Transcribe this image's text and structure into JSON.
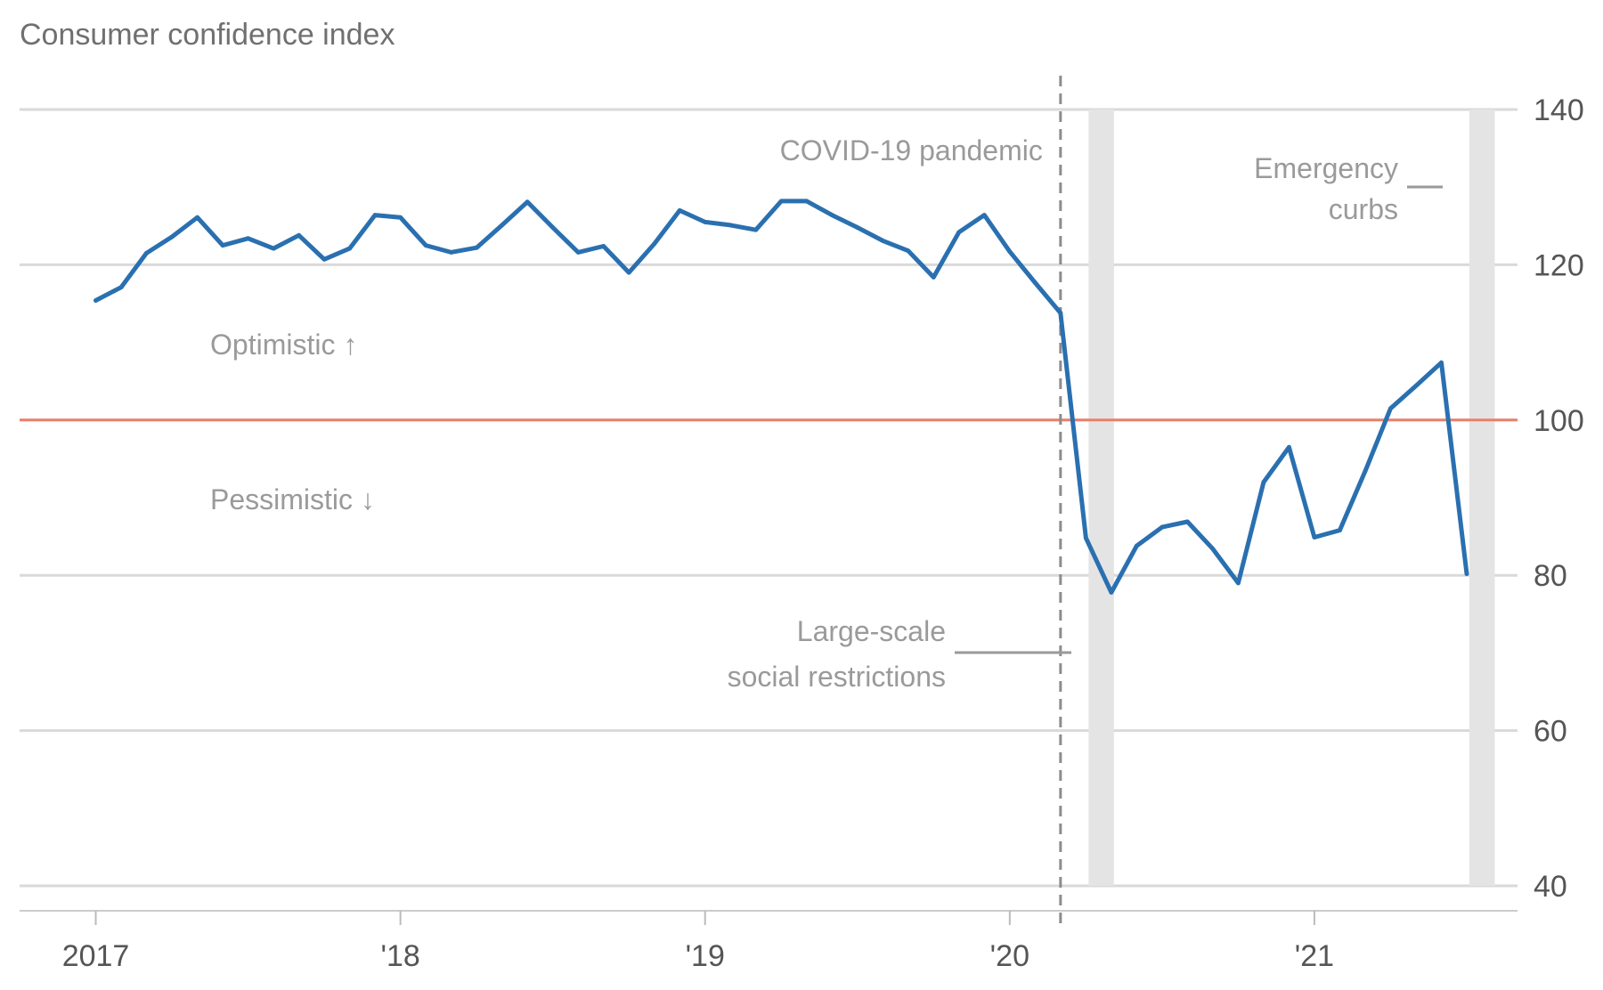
{
  "chart_data": {
    "type": "line",
    "title": "Consumer confidence index",
    "xlabel": "",
    "ylabel": "",
    "ylim": [
      40,
      140
    ],
    "yticks": [
      40,
      60,
      80,
      100,
      120,
      140
    ],
    "ytick_labels": [
      "40",
      "60",
      "80",
      "100",
      "120",
      "140"
    ],
    "xlim": [
      "2016-10",
      "2021-09"
    ],
    "xticks": [
      "2017-01",
      "2018-01",
      "2019-01",
      "2020-01",
      "2021-01"
    ],
    "xtick_labels": [
      "2017",
      "'18",
      "'19",
      "'20",
      "'21"
    ],
    "y_axis_position": "right",
    "grid": true,
    "reference_line": {
      "y": 100,
      "color": "#e8806b"
    },
    "series": [
      {
        "color": "#2a70b0",
        "x": [
          "2017-01",
          "2017-02",
          "2017-03",
          "2017-04",
          "2017-05",
          "2017-06",
          "2017-07",
          "2017-08",
          "2017-09",
          "2017-10",
          "2017-11",
          "2017-12",
          "2018-01",
          "2018-02",
          "2018-03",
          "2018-04",
          "2018-05",
          "2018-06",
          "2018-07",
          "2018-08",
          "2018-09",
          "2018-10",
          "2018-11",
          "2018-12",
          "2019-01",
          "2019-02",
          "2019-03",
          "2019-04",
          "2019-05",
          "2019-06",
          "2019-07",
          "2019-08",
          "2019-09",
          "2019-10",
          "2019-11",
          "2019-12",
          "2020-01",
          "2020-02",
          "2020-03",
          "2020-04",
          "2020-05",
          "2020-06",
          "2020-07",
          "2020-08",
          "2020-09",
          "2020-10",
          "2020-11",
          "2020-12",
          "2021-01",
          "2021-02",
          "2021-03",
          "2021-04",
          "2021-05",
          "2021-06",
          "2021-07"
        ],
        "values": [
          115.4,
          117.1,
          121.5,
          123.6,
          126.1,
          122.5,
          123.4,
          122.1,
          123.8,
          120.7,
          122.1,
          126.4,
          126.1,
          122.5,
          121.6,
          122.2,
          125.1,
          128.1,
          124.8,
          121.6,
          122.4,
          119.0,
          122.7,
          127.0,
          125.5,
          125.1,
          124.5,
          128.2,
          128.2,
          126.4,
          124.8,
          123.1,
          121.8,
          118.4,
          124.2,
          126.4,
          121.7,
          117.7,
          113.8,
          84.8,
          77.8,
          83.8,
          86.2,
          86.9,
          83.4,
          79.0,
          92.0,
          96.5,
          84.9,
          85.8,
          93.4,
          101.5,
          104.4,
          107.4,
          80.2
        ]
      }
    ],
    "shaded_periods": [
      {
        "start": "2020-04",
        "end": "2020-05"
      },
      {
        "start": "2021-07",
        "end": "2021-08"
      }
    ],
    "events": [
      {
        "date": "2020-03",
        "label": "COVID-19 pandemic"
      }
    ],
    "annotations": {
      "optimistic": "Optimistic ↑",
      "pessimistic": "Pessimistic ↓",
      "psbb_line1": "Large-scale",
      "psbb_line2": "social restrictions",
      "emergency_line1": "Emergency",
      "emergency_line2": "curbs"
    }
  }
}
